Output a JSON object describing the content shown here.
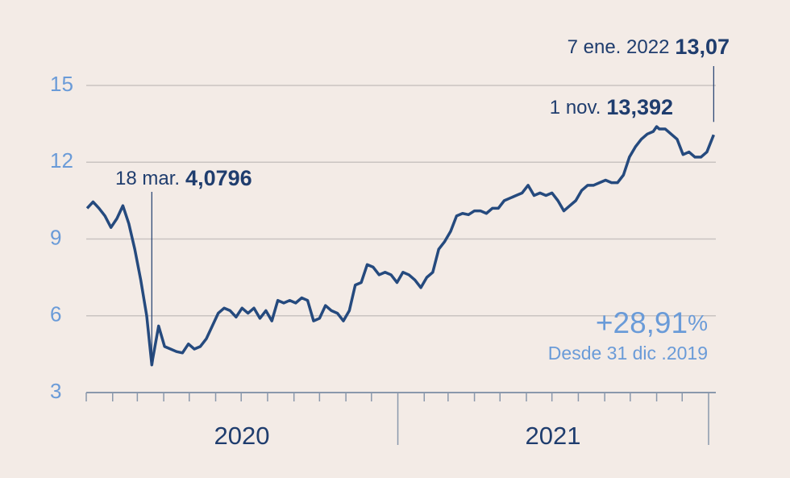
{
  "chart_data": {
    "type": "line",
    "x": [
      "2020-01-02",
      "2020-01-09",
      "2020-01-16",
      "2020-01-23",
      "2020-01-30",
      "2020-02-06",
      "2020-02-13",
      "2020-02-20",
      "2020-02-27",
      "2020-03-05",
      "2020-03-12",
      "2020-03-18",
      "2020-03-19",
      "2020-03-26",
      "2020-04-02",
      "2020-04-09",
      "2020-04-16",
      "2020-04-23",
      "2020-04-30",
      "2020-05-07",
      "2020-05-14",
      "2020-05-21",
      "2020-05-28",
      "2020-06-04",
      "2020-06-11",
      "2020-06-18",
      "2020-06-25",
      "2020-07-02",
      "2020-07-09",
      "2020-07-16",
      "2020-07-23",
      "2020-07-30",
      "2020-08-06",
      "2020-08-13",
      "2020-08-20",
      "2020-08-27",
      "2020-09-03",
      "2020-09-10",
      "2020-09-17",
      "2020-09-24",
      "2020-10-01",
      "2020-10-08",
      "2020-10-15",
      "2020-10-22",
      "2020-10-29",
      "2020-11-05",
      "2020-11-12",
      "2020-11-19",
      "2020-11-26",
      "2020-12-03",
      "2020-12-10",
      "2020-12-17",
      "2020-12-24",
      "2020-12-31",
      "2021-01-07",
      "2021-01-14",
      "2021-01-21",
      "2021-01-28",
      "2021-02-04",
      "2021-02-11",
      "2021-02-18",
      "2021-02-25",
      "2021-03-04",
      "2021-03-11",
      "2021-03-18",
      "2021-03-25",
      "2021-04-01",
      "2021-04-08",
      "2021-04-15",
      "2021-04-22",
      "2021-04-29",
      "2021-05-06",
      "2021-05-13",
      "2021-05-20",
      "2021-05-27",
      "2021-06-03",
      "2021-06-10",
      "2021-06-17",
      "2021-06-24",
      "2021-07-01",
      "2021-07-08",
      "2021-07-15",
      "2021-07-22",
      "2021-07-29",
      "2021-08-05",
      "2021-08-12",
      "2021-08-19",
      "2021-08-26",
      "2021-09-02",
      "2021-09-09",
      "2021-09-16",
      "2021-09-23",
      "2021-09-30",
      "2021-10-07",
      "2021-10-14",
      "2021-10-21",
      "2021-10-28",
      "2021-11-01",
      "2021-11-04",
      "2021-11-11",
      "2021-11-18",
      "2021-11-25",
      "2021-12-02",
      "2021-12-09",
      "2021-12-16",
      "2021-12-23",
      "2021-12-30",
      "2022-01-07"
    ],
    "values": [
      10.2,
      10.45,
      10.2,
      9.9,
      9.45,
      9.8,
      10.3,
      9.6,
      8.6,
      7.4,
      6.0,
      4.0796,
      4.3,
      5.6,
      4.8,
      4.7,
      4.6,
      4.55,
      4.9,
      4.7,
      4.8,
      5.1,
      5.6,
      6.1,
      6.3,
      6.2,
      5.95,
      6.3,
      6.1,
      6.3,
      5.9,
      6.2,
      5.8,
      6.6,
      6.5,
      6.6,
      6.5,
      6.7,
      6.6,
      5.8,
      5.9,
      6.4,
      6.2,
      6.1,
      5.8,
      6.2,
      7.2,
      7.3,
      8.0,
      7.9,
      7.6,
      7.7,
      7.6,
      7.3,
      7.7,
      7.6,
      7.4,
      7.1,
      7.5,
      7.7,
      8.6,
      8.9,
      9.3,
      9.9,
      10.0,
      9.95,
      10.1,
      10.1,
      10.0,
      10.2,
      10.2,
      10.5,
      10.6,
      10.7,
      10.8,
      11.1,
      10.7,
      10.8,
      10.7,
      10.8,
      10.5,
      10.1,
      10.3,
      10.5,
      10.9,
      11.1,
      11.1,
      11.2,
      11.3,
      11.2,
      11.2,
      11.5,
      12.2,
      12.6,
      12.9,
      13.1,
      13.2,
      13.392,
      13.3,
      13.3,
      13.1,
      12.9,
      12.3,
      12.4,
      12.2,
      12.2,
      12.4,
      13.07
    ],
    "color": "#254a7e",
    "xlim": [
      "2020-01-01",
      "2022-01-01"
    ],
    "xticks": [
      "2020-01-01",
      "2020-02-01",
      "2020-03-01",
      "2020-04-01",
      "2020-05-01",
      "2020-06-01",
      "2020-07-01",
      "2020-08-01",
      "2020-09-01",
      "2020-10-01",
      "2020-11-01",
      "2020-12-01",
      "2021-01-01",
      "2021-02-01",
      "2021-03-01",
      "2021-04-01",
      "2021-05-01",
      "2021-06-01",
      "2021-07-01",
      "2021-08-01",
      "2021-09-01",
      "2021-10-01",
      "2021-11-01",
      "2021-12-01",
      "2022-01-01"
    ],
    "year_labels": [
      "2020",
      "2021"
    ],
    "ylim": [
      3,
      15
    ],
    "yticks": [
      3,
      6,
      9,
      12,
      15
    ],
    "grid": true,
    "annotations": [
      {
        "date_label": "18 mar.",
        "value_label": "4,0796",
        "x": "2020-03-18",
        "y": 4.0796
      },
      {
        "date_label": "1 nov.",
        "value_label": "13,392",
        "x": "2021-11-01",
        "y": 13.392
      },
      {
        "date_label": "7 ene. 2022",
        "value_label": "13,07",
        "x": "2022-01-07",
        "y": 13.07
      }
    ],
    "change": {
      "label": "+28,91",
      "unit": "%",
      "note": "Desde 31 dic .2019"
    }
  }
}
